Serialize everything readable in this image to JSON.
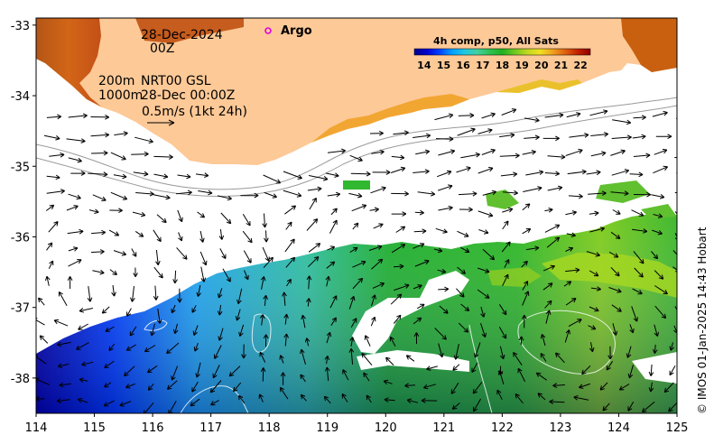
{
  "map": {
    "date": "28-Dec-2024",
    "hour": "00Z",
    "legend_argo": "Argo",
    "contour_200": "200m",
    "contour_1000": "1000m",
    "product": "NRT00 GSL",
    "product_time": "28-Dec 00:00Z",
    "scale_label": "0.5m/s (1kt 24h)",
    "credit": "© IMOS 01-Jan-2025 14:43 Hobart",
    "x_ticks": [
      "114",
      "115",
      "116",
      "117",
      "118",
      "119",
      "120",
      "121",
      "122",
      "123",
      "124",
      "125"
    ],
    "y_ticks": [
      "-33",
      "-34",
      "-35",
      "-36",
      "-37",
      "-38"
    ],
    "lon_range": [
      114,
      125
    ],
    "lat_range": [
      -38.5,
      -32.9
    ],
    "land_color": "#fdc997"
  },
  "colorbar": {
    "title": "4h comp, p50, All Sats",
    "labels": [
      "14",
      "15",
      "16",
      "17",
      "18",
      "19",
      "20",
      "21",
      "22"
    ],
    "range": [
      13.5,
      22.5
    ],
    "colors": [
      "#00008c",
      "#0000d0",
      "#0040ff",
      "#00a0ff",
      "#20c8e0",
      "#40d0a0",
      "#30c050",
      "#20b020",
      "#70c820",
      "#c0d820",
      "#f0e020",
      "#f0a020",
      "#e06010",
      "#c02000",
      "#8c0000"
    ]
  }
}
